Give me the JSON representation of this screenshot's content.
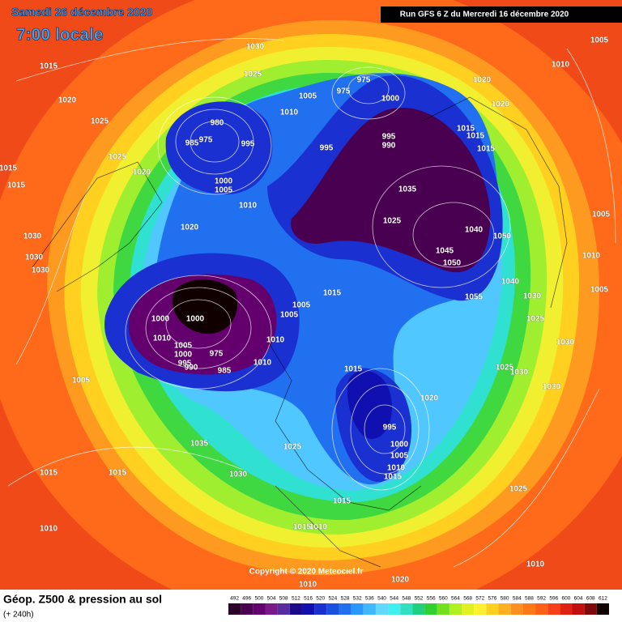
{
  "header": {
    "date": "Samedi 26 décembre 2020",
    "time": "7:00 locale",
    "run": "Run GFS 6 Z du Mercredi 16 décembre 2020"
  },
  "footer": {
    "title": "Géop. Z500 & pression au sol",
    "lead": "(+ 240h)",
    "copyright": "Copyright © 2020 Meteociel.fr"
  },
  "colorbar": {
    "ticks": [
      492,
      496,
      500,
      504,
      508,
      512,
      516,
      520,
      524,
      528,
      532,
      536,
      540,
      544,
      548,
      552,
      556,
      560,
      564,
      568,
      572,
      576,
      580,
      584,
      588,
      592,
      596,
      600,
      604,
      608,
      612
    ],
    "colors": [
      "#2a0028",
      "#4a0050",
      "#64006e",
      "#7a1a8a",
      "#5a2aa0",
      "#1a0a8a",
      "#1010b0",
      "#1a30d0",
      "#1a50e0",
      "#2070f0",
      "#2898ff",
      "#40b8ff",
      "#60d8ff",
      "#40f0f0",
      "#30e0c0",
      "#20d080",
      "#30d030",
      "#70e020",
      "#b0f020",
      "#e0f020",
      "#fff030",
      "#ffd020",
      "#ffb020",
      "#ff9020",
      "#ff7818",
      "#ff6018",
      "#f84018",
      "#e02010",
      "#c01010",
      "#800808",
      "#100000"
    ]
  },
  "isobar_labels": [
    1015,
    1020,
    1025,
    1025,
    1015,
    1015,
    1020,
    1030,
    1025,
    1010,
    1005,
    980,
    975,
    985,
    995,
    1000,
    1005,
    1010,
    975,
    975,
    1000,
    995,
    995,
    990,
    1035,
    1025,
    1040,
    1050,
    1045,
    1050,
    1055,
    1040,
    1020,
    1020,
    1015,
    1015,
    1015,
    1010,
    1005,
    1005,
    1010,
    1005,
    1030,
    1025,
    1030,
    1025,
    1030,
    1030,
    1020,
    1015,
    995,
    1000,
    1005,
    1010,
    1015,
    1025,
    1030,
    1035,
    1015,
    1015,
    1010,
    1005,
    1030,
    1030,
    1030,
    1020,
    1000,
    1010,
    1005,
    1000,
    995,
    990,
    975,
    985,
    1010,
    1005,
    1005,
    1015,
    1010,
    1015,
    1015,
    1010,
    1010,
    1020,
    1025,
    1010,
    1000
  ]
}
